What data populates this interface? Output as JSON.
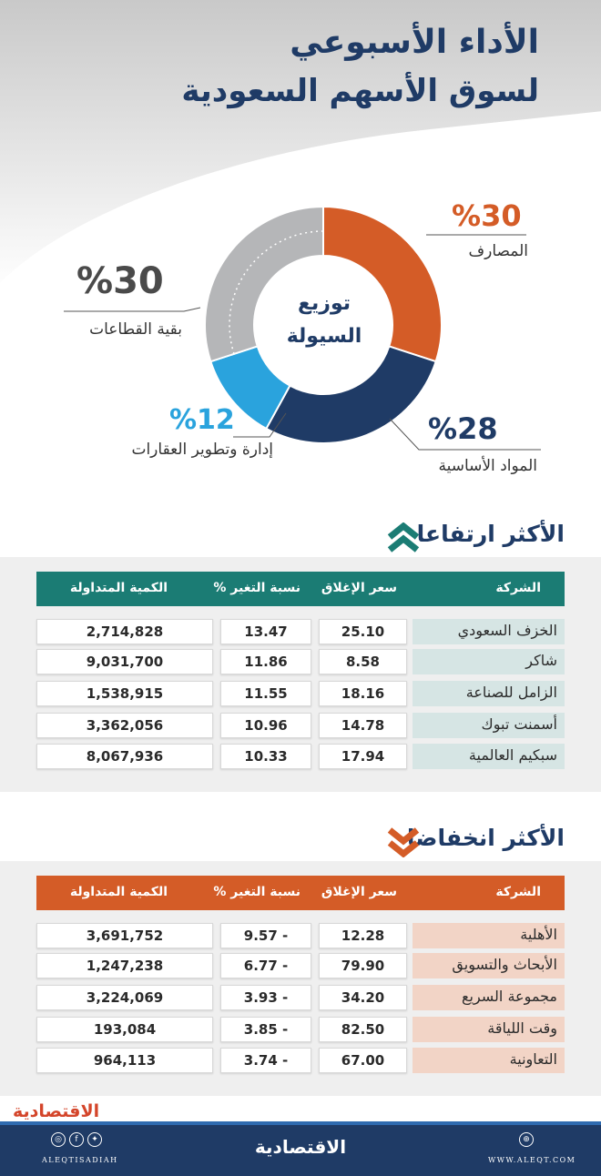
{
  "header": {
    "title_line1": "الأداء الأسبوعي",
    "title_line2": "لسوق الأسهم السعودية"
  },
  "chart_data": {
    "type": "pie",
    "title": "توزيع السيولة",
    "center_label_line1": "توزيع",
    "center_label_line2": "السيولة",
    "slices": [
      {
        "label": "المصارف",
        "value": 30,
        "value_text": "%30",
        "color": "#d45c27"
      },
      {
        "label": "المواد الأساسية",
        "value": 28,
        "value_text": "%28",
        "color": "#1f3b66"
      },
      {
        "label": "إدارة وتطوير العقارات",
        "value": 12,
        "value_text": "%12",
        "color": "#2aa3dd"
      },
      {
        "label": "بقية القطاعات",
        "value": 30,
        "value_text": "%30",
        "color": "#b5b6b8"
      }
    ]
  },
  "gainers": {
    "title": "الأكثر ارتفاعا",
    "header_color": "#1b7c74",
    "columns": {
      "name": "الشركة",
      "close": "سعر الإغلاق",
      "change": "نسبة التغير %",
      "qty": "الكمية المتداولة"
    },
    "rows": [
      {
        "name": "الخزف السعودي",
        "close": "25.10",
        "change": "13.47",
        "qty": "2,714,828"
      },
      {
        "name": "شاكر",
        "close": "8.58",
        "change": "11.86",
        "qty": "9,031,700"
      },
      {
        "name": "الزامل للصناعة",
        "close": "18.16",
        "change": "11.55",
        "qty": "1,538,915"
      },
      {
        "name": "أسمنت تبوك",
        "close": "14.78",
        "change": "10.96",
        "qty": "3,362,056"
      },
      {
        "name": "سبكيم العالمية",
        "close": "17.94",
        "change": "10.33",
        "qty": "8,067,936"
      }
    ]
  },
  "losers": {
    "title": "الأكثر انخفاضا",
    "header_color": "#d45c27",
    "columns": {
      "name": "الشركة",
      "close": "سعر الإغلاق",
      "change": "نسبة التغير %",
      "qty": "الكمية المتداولة"
    },
    "rows": [
      {
        "name": "الأهلية",
        "close": "12.28",
        "change": "9.57 -",
        "qty": "3,691,752"
      },
      {
        "name": "الأبحاث والتسويق",
        "close": "79.90",
        "change": "6.77 -",
        "qty": "1,247,238"
      },
      {
        "name": "مجموعة السريع",
        "close": "34.20",
        "change": "3.93 -",
        "qty": "3,224,069"
      },
      {
        "name": "وقت اللياقة",
        "close": "82.50",
        "change": "3.85 -",
        "qty": "193,084"
      },
      {
        "name": "التعاونية",
        "close": "67.00",
        "change": "3.74 -",
        "qty": "964,113"
      }
    ]
  },
  "footer": {
    "brand": "الاقتصادية",
    "handle": "ALEQTISADIAH",
    "website": "WWW.ALEQT.COM",
    "icons": [
      "instagram-icon",
      "facebook-icon",
      "twitter-icon",
      "web-icon"
    ]
  }
}
